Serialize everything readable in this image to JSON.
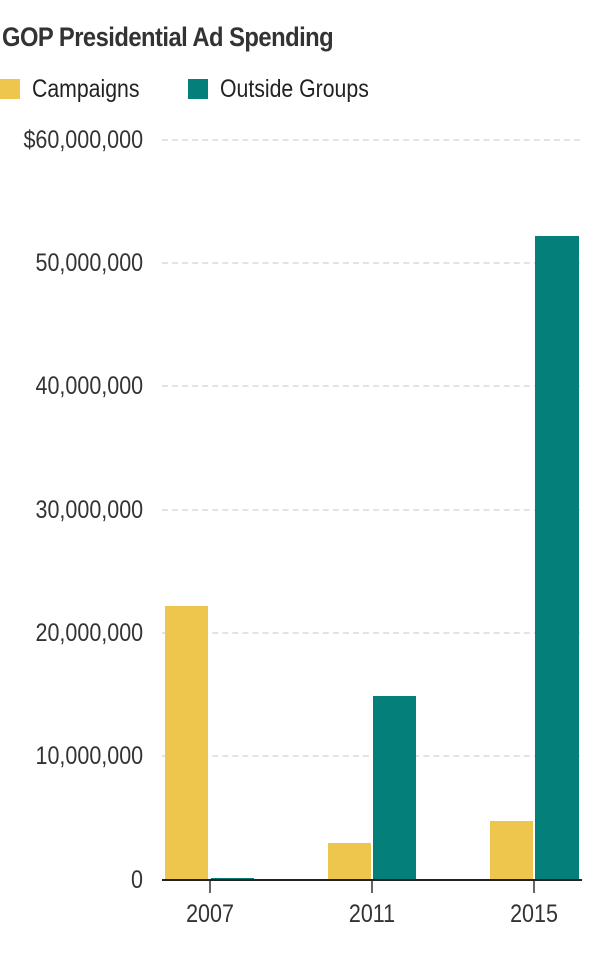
{
  "chart_data": {
    "type": "bar",
    "title": "GOP Presidential Ad Spending",
    "categories": [
      "2007",
      "2011",
      "2015"
    ],
    "series": [
      {
        "name": "Campaigns",
        "color": "#EEC64E",
        "values": [
          22200000,
          3000000,
          4800000
        ]
      },
      {
        "name": "Outside Groups",
        "color": "#057F7A",
        "values": [
          150000,
          14900000,
          52200000
        ]
      }
    ],
    "xlabel": "",
    "ylabel": "",
    "ylim": [
      0,
      60000000
    ],
    "yticks": [
      "0",
      "10,000,000",
      "20,000,000",
      "30,000,000",
      "40,000,000",
      "50,000,000",
      "$60,000,000"
    ],
    "grid": true,
    "legend_position": "top-left"
  },
  "title": "GOP Presidential Ad Spending",
  "legend": [
    {
      "label": "Campaigns",
      "color": "#EEC64E"
    },
    {
      "label": "Outside Groups",
      "color": "#057F7A"
    }
  ],
  "axis": {
    "y_labels": [
      "$60,000,000",
      "50,000,000",
      "40,000,000",
      "30,000,000",
      "20,000,000",
      "10,000,000",
      "0"
    ],
    "x_labels": [
      "2007",
      "2011",
      "2015"
    ]
  }
}
